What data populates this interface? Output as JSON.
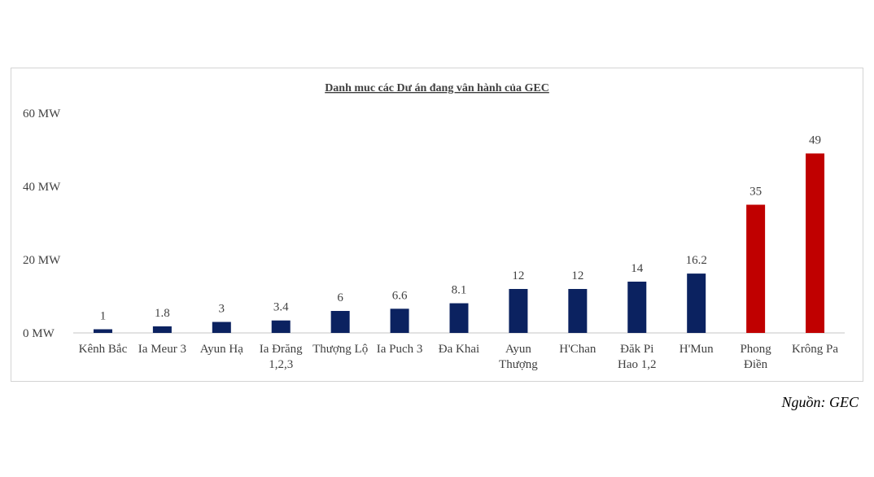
{
  "chart_data": {
    "type": "bar",
    "title": "Danh muc các Dư án đang vân hành của GEC",
    "xlabel": "",
    "ylabel": "",
    "ylim": [
      0,
      60
    ],
    "yticks": [
      {
        "value": 0,
        "label": "0 MW"
      },
      {
        "value": 20,
        "label": "20 MW"
      },
      {
        "value": 40,
        "label": "40 MW"
      },
      {
        "value": 60,
        "label": "60 MW"
      }
    ],
    "categories": [
      [
        "Kênh Bắc"
      ],
      [
        "Ia Meur 3"
      ],
      [
        "Ayun Hạ"
      ],
      [
        "Ia Đrăng",
        "1,2,3"
      ],
      [
        "Thượng Lộ"
      ],
      [
        "Ia Puch 3"
      ],
      [
        "Đa Khai"
      ],
      [
        "Ayun",
        "Thượng"
      ],
      [
        "H'Chan"
      ],
      [
        "Đăk Pi",
        "Hao 1,2"
      ],
      [
        "H'Mun"
      ],
      [
        "Phong",
        "Điền"
      ],
      [
        "Krông Pa"
      ]
    ],
    "values": [
      1,
      1.8,
      3,
      3.4,
      6,
      6.6,
      8.1,
      12,
      12,
      14,
      16.2,
      35,
      49
    ],
    "data_labels": [
      "1",
      "1.8",
      "3",
      "3.4",
      "6",
      "6.6",
      "8.1",
      "12",
      "12",
      "14",
      "16.2",
      "35",
      "49"
    ],
    "colors": [
      "#0b2260",
      "#0b2260",
      "#0b2260",
      "#0b2260",
      "#0b2260",
      "#0b2260",
      "#0b2260",
      "#0b2260",
      "#0b2260",
      "#0b2260",
      "#0b2260",
      "#c00000",
      "#c00000"
    ],
    "grid": false,
    "legend": "none"
  },
  "source_note": "Nguồn: GEC"
}
